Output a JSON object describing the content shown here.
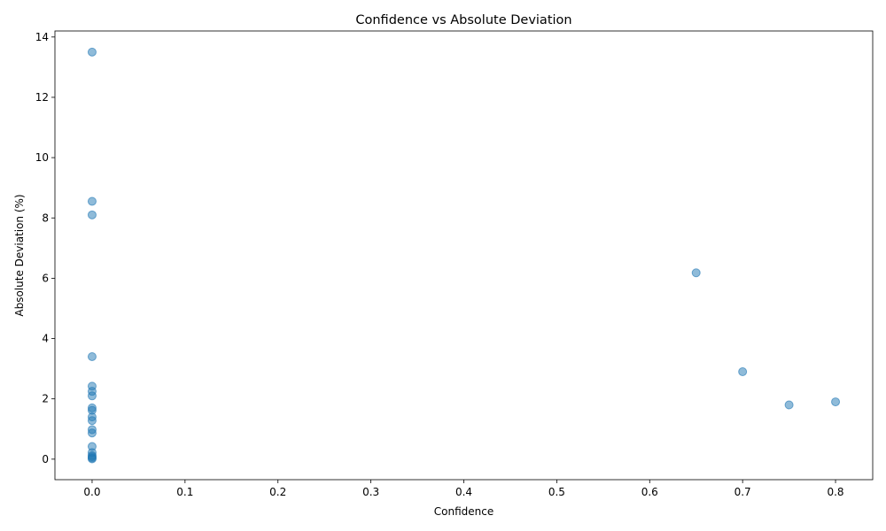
{
  "chart_data": {
    "type": "scatter",
    "title": "Confidence vs Absolute Deviation",
    "xlabel": "Confidence",
    "ylabel": "Absolute Deviation (%)",
    "xlim": [
      -0.04,
      0.84
    ],
    "ylim": [
      -0.68,
      14.2
    ],
    "xticks": [
      0.0,
      0.1,
      0.2,
      0.3,
      0.4,
      0.5,
      0.6,
      0.7,
      0.8
    ],
    "xtick_labels": [
      "0.0",
      "0.1",
      "0.2",
      "0.3",
      "0.4",
      "0.5",
      "0.6",
      "0.7",
      "0.8"
    ],
    "yticks": [
      0,
      2,
      4,
      6,
      8,
      10,
      12,
      14
    ],
    "ytick_labels": [
      "0",
      "2",
      "4",
      "6",
      "8",
      "10",
      "12",
      "14"
    ],
    "grid": false,
    "marker_color": "#1f77b4",
    "marker_alpha": 0.5,
    "points": [
      {
        "x": 0.0,
        "y": 13.5
      },
      {
        "x": 0.0,
        "y": 8.55
      },
      {
        "x": 0.0,
        "y": 8.1
      },
      {
        "x": 0.0,
        "y": 3.4
      },
      {
        "x": 0.0,
        "y": 2.42
      },
      {
        "x": 0.0,
        "y": 2.25
      },
      {
        "x": 0.0,
        "y": 2.1
      },
      {
        "x": 0.0,
        "y": 1.7
      },
      {
        "x": 0.0,
        "y": 1.62
      },
      {
        "x": 0.0,
        "y": 1.4
      },
      {
        "x": 0.0,
        "y": 1.28
      },
      {
        "x": 0.0,
        "y": 0.98
      },
      {
        "x": 0.0,
        "y": 0.87
      },
      {
        "x": 0.0,
        "y": 0.42
      },
      {
        "x": 0.0,
        "y": 0.22
      },
      {
        "x": 0.0,
        "y": 0.12
      },
      {
        "x": 0.0,
        "y": 0.08
      },
      {
        "x": 0.0,
        "y": 0.04
      },
      {
        "x": 0.0,
        "y": 0.01
      },
      {
        "x": 0.65,
        "y": 6.18
      },
      {
        "x": 0.7,
        "y": 2.9
      },
      {
        "x": 0.75,
        "y": 1.8
      },
      {
        "x": 0.8,
        "y": 1.9
      }
    ]
  }
}
